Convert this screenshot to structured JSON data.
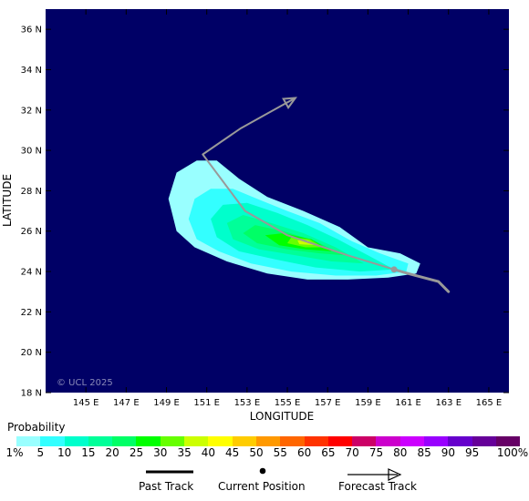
{
  "map": {
    "background_color": "#000066",
    "extent": {
      "lon": [
        143.0,
        166.0
      ],
      "lat": [
        18.0,
        37.0
      ]
    },
    "lat_ticks": [
      {
        "lat": 36,
        "label": "36 N"
      },
      {
        "lat": 34,
        "label": "34 N"
      },
      {
        "lat": 32,
        "label": "32 N"
      },
      {
        "lat": 30,
        "label": "30 N"
      },
      {
        "lat": 28,
        "label": "28 N"
      },
      {
        "lat": 26,
        "label": "26 N"
      },
      {
        "lat": 24,
        "label": "24 N"
      },
      {
        "lat": 22,
        "label": "22 N"
      },
      {
        "lat": 20,
        "label": "20 N"
      },
      {
        "lat": 18,
        "label": "18 N"
      }
    ],
    "lon_ticks": [
      {
        "lon": 145,
        "label": "145 E"
      },
      {
        "lon": 147,
        "label": "147 E"
      },
      {
        "lon": 149,
        "label": "149 E"
      },
      {
        "lon": 151,
        "label": "151 E"
      },
      {
        "lon": 153,
        "label": "153 E"
      },
      {
        "lon": 155,
        "label": "155 E"
      },
      {
        "lon": 157,
        "label": "157 E"
      },
      {
        "lon": 159,
        "label": "159 E"
      },
      {
        "lon": 161,
        "label": "161 E"
      },
      {
        "lon": 163,
        "label": "163 E"
      },
      {
        "lon": 165,
        "label": "165 E"
      }
    ],
    "xlabel": "LONGITUDE",
    "ylabel": "LATITUDE",
    "watermark": "© UCL 2025",
    "past_track": [
      [
        163.0,
        23.0
      ],
      [
        162.5,
        23.5
      ],
      [
        161.0,
        23.9
      ],
      [
        160.3,
        24.1
      ]
    ],
    "current_position": [
      160.3,
      24.1
    ],
    "forecast_track": [
      [
        160.3,
        24.1
      ],
      [
        158.0,
        24.8
      ],
      [
        155.0,
        25.8
      ],
      [
        152.9,
        27.0
      ],
      [
        150.8,
        29.8
      ],
      [
        152.7,
        31.1
      ],
      [
        155.4,
        32.6
      ]
    ],
    "track_color": "#999999",
    "probability_zones": [
      {
        "level": 1,
        "color": "#99ffff",
        "polygon": [
          [
            161.4,
            23.9
          ],
          [
            161.6,
            24.4
          ],
          [
            160.6,
            24.9
          ],
          [
            159.0,
            25.2
          ],
          [
            157.6,
            26.2
          ],
          [
            155.8,
            27.0
          ],
          [
            154.0,
            27.7
          ],
          [
            152.6,
            28.6
          ],
          [
            151.5,
            29.5
          ],
          [
            150.5,
            29.5
          ],
          [
            149.5,
            28.9
          ],
          [
            149.1,
            27.6
          ],
          [
            149.5,
            26.0
          ],
          [
            150.4,
            25.2
          ],
          [
            152.0,
            24.5
          ],
          [
            154.0,
            23.9
          ],
          [
            156.0,
            23.6
          ],
          [
            158.0,
            23.6
          ],
          [
            160.0,
            23.7
          ]
        ]
      },
      {
        "level": 5,
        "color": "#33ffff",
        "polygon": [
          [
            160.9,
            24.0
          ],
          [
            161.0,
            24.4
          ],
          [
            159.6,
            24.9
          ],
          [
            158.2,
            25.5
          ],
          [
            156.6,
            26.4
          ],
          [
            155.0,
            27.0
          ],
          [
            153.5,
            27.6
          ],
          [
            152.3,
            28.1
          ],
          [
            151.2,
            28.1
          ],
          [
            150.4,
            27.6
          ],
          [
            150.1,
            26.6
          ],
          [
            150.5,
            25.6
          ],
          [
            151.6,
            25.0
          ],
          [
            153.2,
            24.4
          ],
          [
            155.2,
            24.0
          ],
          [
            157.4,
            23.8
          ],
          [
            159.4,
            23.8
          ]
        ]
      },
      {
        "level": 10,
        "color": "#00ffcc",
        "polygon": [
          [
            160.3,
            24.1
          ],
          [
            159.0,
            24.8
          ],
          [
            157.5,
            25.6
          ],
          [
            156.0,
            26.3
          ],
          [
            154.5,
            26.9
          ],
          [
            153.0,
            27.4
          ],
          [
            151.8,
            27.3
          ],
          [
            151.2,
            26.6
          ],
          [
            151.5,
            25.7
          ],
          [
            152.6,
            25.0
          ],
          [
            154.4,
            24.6
          ],
          [
            156.4,
            24.2
          ],
          [
            158.6,
            24.0
          ]
        ]
      },
      {
        "level": 15,
        "color": "#00ff99",
        "polygon": [
          [
            158.8,
            24.4
          ],
          [
            157.4,
            25.2
          ],
          [
            155.8,
            25.9
          ],
          [
            154.2,
            26.4
          ],
          [
            152.8,
            26.8
          ],
          [
            152.0,
            26.4
          ],
          [
            152.3,
            25.6
          ],
          [
            153.6,
            25.1
          ],
          [
            155.4,
            24.8
          ],
          [
            157.2,
            24.5
          ]
        ]
      },
      {
        "level": 20,
        "color": "#00ff66",
        "polygon": [
          [
            157.8,
            24.8
          ],
          [
            156.4,
            25.5
          ],
          [
            154.8,
            26.0
          ],
          [
            153.4,
            26.3
          ],
          [
            152.8,
            25.9
          ],
          [
            153.5,
            25.4
          ],
          [
            155.0,
            25.1
          ],
          [
            156.6,
            24.9
          ]
        ]
      },
      {
        "level": 25,
        "color": "#00ff00",
        "polygon": [
          [
            157.2,
            25.0
          ],
          [
            156.2,
            25.6
          ],
          [
            154.8,
            25.9
          ],
          [
            153.9,
            25.8
          ],
          [
            154.6,
            25.3
          ],
          [
            155.9,
            25.1
          ]
        ]
      },
      {
        "level": 30,
        "color": "#66ff00",
        "polygon": [
          [
            156.8,
            25.2
          ],
          [
            156.1,
            25.6
          ],
          [
            155.2,
            25.7
          ],
          [
            155.0,
            25.4
          ],
          [
            155.9,
            25.2
          ]
        ]
      },
      {
        "level": 35,
        "color": "#ccff00",
        "polygon": [
          [
            156.5,
            25.3
          ],
          [
            156.0,
            25.55
          ],
          [
            155.5,
            25.55
          ],
          [
            155.6,
            25.35
          ]
        ]
      }
    ]
  },
  "legend": {
    "title": "Probability",
    "items": [
      {
        "label": "1%",
        "color": "#99ffff"
      },
      {
        "label": "5",
        "color": "#33ffff"
      },
      {
        "label": "10",
        "color": "#00ffcc"
      },
      {
        "label": "15",
        "color": "#00ff99"
      },
      {
        "label": "20",
        "color": "#00ff66"
      },
      {
        "label": "25",
        "color": "#00ff00"
      },
      {
        "label": "30",
        "color": "#66ff00"
      },
      {
        "label": "35",
        "color": "#ccff00"
      },
      {
        "label": "40",
        "color": "#ffff00"
      },
      {
        "label": "45",
        "color": "#ffcc00"
      },
      {
        "label": "50",
        "color": "#ff9900"
      },
      {
        "label": "55",
        "color": "#ff6600"
      },
      {
        "label": "60",
        "color": "#ff3300"
      },
      {
        "label": "65",
        "color": "#ff0000"
      },
      {
        "label": "70",
        "color": "#cc0066"
      },
      {
        "label": "75",
        "color": "#cc00cc"
      },
      {
        "label": "80",
        "color": "#cc00ff"
      },
      {
        "label": "85",
        "color": "#9900ff"
      },
      {
        "label": "90",
        "color": "#6600cc"
      },
      {
        "label": "95",
        "color": "#660099"
      },
      {
        "label": "100%",
        "color": "#660066"
      }
    ]
  },
  "track_key": {
    "past_label": "Past Track",
    "current_label": "Current Position",
    "forecast_label": "Forecast Track"
  }
}
